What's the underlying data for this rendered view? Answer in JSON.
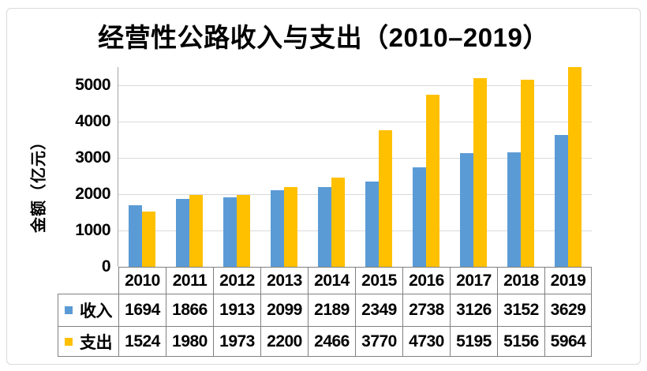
{
  "chart_data": {
    "type": "bar",
    "title": "经营性公路收入与支出（2010–2019）",
    "ylabel": "金额（亿元）",
    "categories": [
      "2010",
      "2011",
      "2012",
      "2013",
      "2014",
      "2015",
      "2016",
      "2017",
      "2018",
      "2019"
    ],
    "series": [
      {
        "name": "收入",
        "key": "income",
        "color": "#5B9BD5",
        "values": [
          1694,
          1866,
          1913,
          2099,
          2189,
          2349,
          2738,
          3126,
          3152,
          3629
        ]
      },
      {
        "name": "支出",
        "key": "expense",
        "color": "#FFC000",
        "values": [
          1524,
          1980,
          1973,
          2200,
          2466,
          3770,
          4730,
          5195,
          5156,
          5964
        ]
      }
    ],
    "yticks": [
      0,
      1000,
      2000,
      3000,
      4000,
      5000
    ],
    "ylim": [
      0,
      5500
    ],
    "grid": true,
    "legend_position": "data-table-left",
    "colors": {
      "gridline": "#d9d9d9",
      "axis_line": "#a6a6a6",
      "table_border": "#808080",
      "frame_border": "#d9d9d9",
      "text": "#000000"
    }
  }
}
